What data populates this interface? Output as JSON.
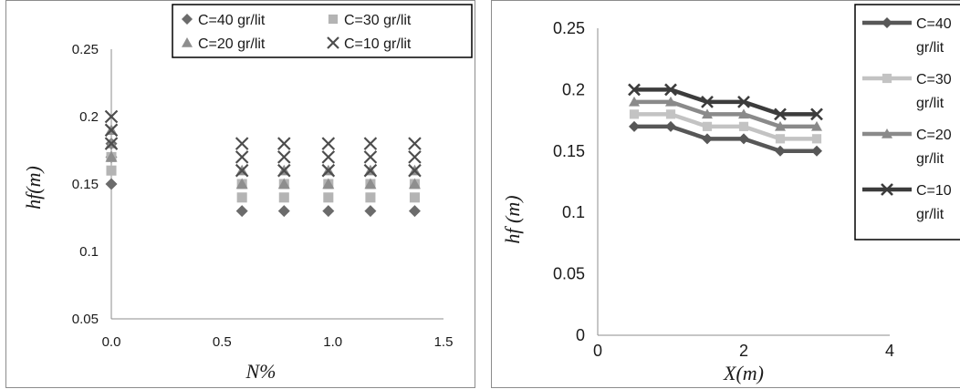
{
  "chart_data": [
    {
      "type": "scatter",
      "title": "",
      "xlabel": "N%",
      "ylabel": "hf(m)",
      "xlim": [
        0.0,
        1.5
      ],
      "ylim": [
        0.05,
        0.25
      ],
      "x_ticks": [
        "0.0",
        "0.5",
        "1.0",
        "1.5"
      ],
      "y_ticks": [
        "0.05",
        "0.1",
        "0.15",
        "0.2",
        "0.25"
      ],
      "grid": false,
      "legend_position": "top-right",
      "x": [
        0.0,
        0.59,
        0.78,
        0.98,
        1.17,
        1.37
      ],
      "series": [
        {
          "name": "C=40 gr/lit",
          "marker": "diamond",
          "color": "#6b6b6b",
          "points": [
            [
              0,
              0.15
            ],
            [
              0,
              0.17
            ],
            [
              0,
              0.18
            ],
            [
              0.59,
              0.13
            ],
            [
              0.78,
              0.13
            ],
            [
              0.98,
              0.13
            ],
            [
              1.17,
              0.13
            ],
            [
              1.37,
              0.13
            ]
          ]
        },
        {
          "name": "C=30 gr/lit",
          "marker": "square",
          "color": "#b4b4b4",
          "points": [
            [
              0,
              0.16
            ],
            [
              0,
              0.17
            ],
            [
              0.59,
              0.14
            ],
            [
              0.59,
              0.15
            ],
            [
              0.78,
              0.14
            ],
            [
              0.78,
              0.15
            ],
            [
              0.98,
              0.14
            ],
            [
              0.98,
              0.15
            ],
            [
              1.17,
              0.14
            ],
            [
              1.17,
              0.15
            ],
            [
              1.37,
              0.14
            ],
            [
              1.37,
              0.15
            ]
          ]
        },
        {
          "name": "C=20 gr/lit",
          "marker": "triangle",
          "color": "#8e8e8e",
          "points": [
            [
              0,
              0.17
            ],
            [
              0,
              0.18
            ],
            [
              0,
              0.19
            ],
            [
              0.59,
              0.15
            ],
            [
              0.59,
              0.16
            ],
            [
              0.78,
              0.15
            ],
            [
              0.78,
              0.16
            ],
            [
              0.98,
              0.15
            ],
            [
              0.98,
              0.16
            ],
            [
              1.17,
              0.15
            ],
            [
              1.17,
              0.16
            ],
            [
              1.37,
              0.15
            ],
            [
              1.37,
              0.16
            ]
          ]
        },
        {
          "name": "C=10 gr/lit",
          "marker": "cross",
          "color": "#4d4d4d",
          "points": [
            [
              0,
              0.2
            ],
            [
              0,
              0.19
            ],
            [
              0,
              0.18
            ],
            [
              0.59,
              0.18
            ],
            [
              0.59,
              0.17
            ],
            [
              0.59,
              0.16
            ],
            [
              0.78,
              0.18
            ],
            [
              0.78,
              0.17
            ],
            [
              0.78,
              0.16
            ],
            [
              0.98,
              0.18
            ],
            [
              0.98,
              0.17
            ],
            [
              0.98,
              0.16
            ],
            [
              1.17,
              0.18
            ],
            [
              1.17,
              0.17
            ],
            [
              1.17,
              0.16
            ],
            [
              1.37,
              0.18
            ],
            [
              1.37,
              0.17
            ],
            [
              1.37,
              0.16
            ]
          ]
        }
      ]
    },
    {
      "type": "line",
      "title": "",
      "xlabel": "X(m)",
      "ylabel": "hf (m)",
      "xlim": [
        0,
        4
      ],
      "ylim": [
        0,
        0.25
      ],
      "x_ticks": [
        "0",
        "2",
        "4"
      ],
      "y_ticks": [
        "0",
        "0.05",
        "0.1",
        "0.15",
        "0.2",
        "0.25"
      ],
      "grid": false,
      "legend_position": "right",
      "x": [
        0.5,
        1,
        1.5,
        2,
        2.5,
        3
      ],
      "series": [
        {
          "name": "C=40 gr/lit",
          "marker": "diamond",
          "color": "#575757",
          "values": [
            0.17,
            0.17,
            0.16,
            0.16,
            0.15,
            0.15
          ]
        },
        {
          "name": "C=30 gr/lit",
          "marker": "square",
          "color": "#c3c3c3",
          "values": [
            0.18,
            0.18,
            0.17,
            0.17,
            0.16,
            0.16
          ]
        },
        {
          "name": "C=20 gr/lit",
          "marker": "triangle",
          "color": "#8a8a8a",
          "values": [
            0.19,
            0.19,
            0.18,
            0.18,
            0.17,
            0.17
          ]
        },
        {
          "name": "C=10 gr/lit",
          "marker": "cross",
          "color": "#3c3c3c",
          "values": [
            0.2,
            0.2,
            0.19,
            0.19,
            0.18,
            0.18
          ]
        }
      ]
    }
  ]
}
